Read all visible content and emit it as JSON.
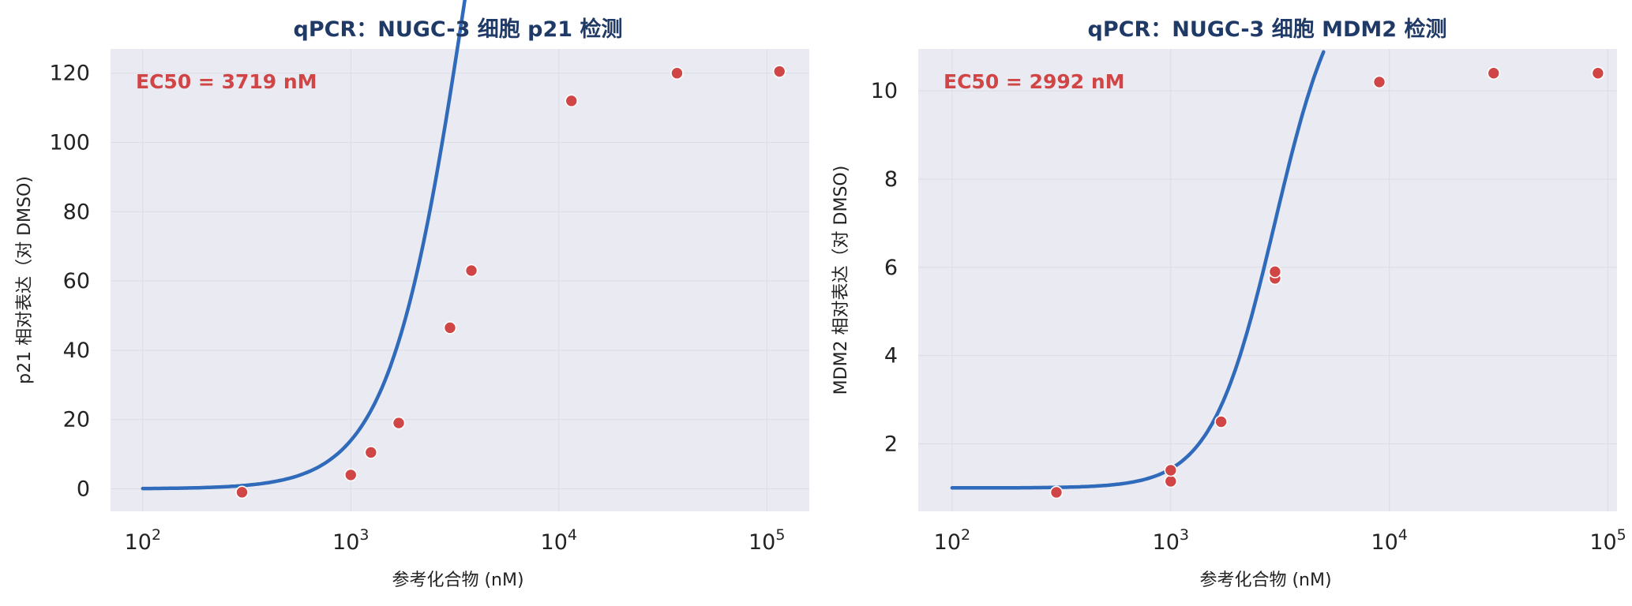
{
  "chart_data": [
    {
      "type": "scatter",
      "title": "qPCR：NUGC-3 细胞 p21 检测",
      "xlabel": "参考化合物 (nM)",
      "ylabel": "p21 相对表达（对 DMSO)",
      "xscale": "log",
      "xlim": [
        70,
        160000
      ],
      "ylim": [
        -6.5,
        127
      ],
      "x_ticks": [
        {
          "base": "10",
          "exp": "2",
          "value": 100
        },
        {
          "base": "10",
          "exp": "3",
          "value": 1000
        },
        {
          "base": "10",
          "exp": "4",
          "value": 10000
        },
        {
          "base": "10",
          "exp": "5",
          "value": 100000
        }
      ],
      "y_ticks": [
        0,
        20,
        40,
        60,
        80,
        100,
        120
      ],
      "y_tick_labels": [
        "0",
        "20",
        "40",
        "60",
        "80",
        "100",
        "120"
      ],
      "annotation": "EC50 = 3719 nM",
      "grid": true,
      "series": [
        {
          "kind": "curve",
          "ec50": 3719,
          "hill": 2.3,
          "bottom": 0,
          "top": 300,
          "x_range": [
            100,
            5000
          ],
          "color": "#2f6bba"
        },
        {
          "kind": "points",
          "color": "#d04545",
          "points": [
            {
              "x": 300,
              "y": -1
            },
            {
              "x": 1000,
              "y": 4
            },
            {
              "x": 1250,
              "y": 10.5
            },
            {
              "x": 1700,
              "y": 19
            },
            {
              "x": 3000,
              "y": 46.5
            },
            {
              "x": 3800,
              "y": 63
            },
            {
              "x": 11500,
              "y": 112
            },
            {
              "x": 37000,
              "y": 120
            },
            {
              "x": 115000,
              "y": 120.5
            }
          ]
        }
      ]
    },
    {
      "type": "scatter",
      "title": "qPCR：NUGC-3 细胞 MDM2 检测",
      "xlabel": "参考化合物 (nM)",
      "ylabel": "MDM2 相对表达（对 DMSO)",
      "xscale": "log",
      "xlim": [
        70,
        110000
      ],
      "ylim": [
        0.47,
        10.95
      ],
      "x_ticks": [
        {
          "base": "10",
          "exp": "2",
          "value": 100
        },
        {
          "base": "10",
          "exp": "3",
          "value": 1000
        },
        {
          "base": "10",
          "exp": "4",
          "value": 10000
        },
        {
          "base": "10",
          "exp": "5",
          "value": 100000
        }
      ],
      "y_ticks": [
        2,
        4,
        6,
        8,
        10
      ],
      "y_tick_labels": [
        "2",
        "4",
        "6",
        "8",
        "10"
      ],
      "annotation": "EC50 = 2992 nM",
      "grid": true,
      "series": [
        {
          "kind": "curve",
          "ec50": 2992,
          "hill": 3.0,
          "bottom": 1.0,
          "top": 13,
          "x_range": [
            100,
            5000
          ],
          "color": "#2f6bba"
        },
        {
          "kind": "points",
          "color": "#d04545",
          "points": [
            {
              "x": 300,
              "y": 0.9
            },
            {
              "x": 1000,
              "y": 1.15
            },
            {
              "x": 1000,
              "y": 1.4
            },
            {
              "x": 1700,
              "y": 2.5
            },
            {
              "x": 3000,
              "y": 5.75
            },
            {
              "x": 3000,
              "y": 5.9
            },
            {
              "x": 9000,
              "y": 10.2
            },
            {
              "x": 30000,
              "y": 10.4
            },
            {
              "x": 90000,
              "y": 10.4
            }
          ]
        }
      ]
    }
  ]
}
